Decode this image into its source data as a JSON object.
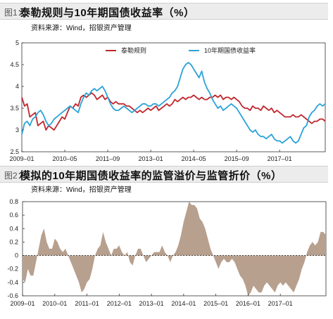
{
  "figure1": {
    "tag": "图1：",
    "title": "泰勒规则与10年期国债收益率（%）",
    "source": "资料来源：Wind，招银资产管理"
  },
  "figure2": {
    "tag": "图2：",
    "title": "模拟的10年期国债收益率的监管溢价与监管折价（%）",
    "source": "资料来源：Wind，招银资产管理"
  },
  "colors": {
    "taylor": "#c0262d",
    "yield10y": "#2aa3d8",
    "premium": "#b8a08e"
  },
  "chart_data": [
    {
      "type": "line",
      "x_start": "2009-01",
      "x_end": "2017-06",
      "frequency": "monthly",
      "ylim": [
        2.5,
        5
      ],
      "yticks": [
        2.5,
        3,
        3.5,
        4,
        4.5,
        5
      ],
      "ytick_labels": [
        "2.5",
        "3",
        "3.5",
        "4",
        "4.5",
        "5"
      ],
      "xtick_labels": [
        "2009–01",
        "2010–05",
        "2011–09",
        "2013–01",
        "2014–05",
        "2015–09",
        "2017–01"
      ],
      "xtick_dates": [
        "2009-01",
        "2010-05",
        "2011-09",
        "2013-01",
        "2014-05",
        "2015-09",
        "2017-01"
      ],
      "grid": false,
      "legend_position": "top",
      "series": [
        {
          "name": "泰勒规则",
          "values": [
            3.75,
            3.55,
            3.6,
            3.3,
            3.35,
            3.4,
            3.1,
            3.15,
            3.2,
            3.0,
            3.1,
            3.05,
            3.0,
            3.1,
            3.2,
            3.3,
            3.25,
            3.4,
            3.55,
            3.5,
            3.6,
            3.55,
            3.75,
            3.8,
            3.75,
            3.8,
            3.85,
            3.8,
            3.7,
            3.75,
            3.8,
            3.7,
            3.75,
            3.65,
            3.6,
            3.65,
            3.6,
            3.6,
            3.6,
            3.55,
            3.55,
            3.5,
            3.45,
            3.4,
            3.45,
            3.4,
            3.45,
            3.5,
            3.45,
            3.5,
            3.55,
            3.45,
            3.5,
            3.55,
            3.6,
            3.55,
            3.6,
            3.7,
            3.65,
            3.7,
            3.75,
            3.7,
            3.75,
            3.75,
            3.8,
            3.75,
            3.7,
            3.75,
            3.7,
            3.7,
            3.75,
            3.75,
            3.8,
            3.75,
            3.8,
            3.7,
            3.75,
            3.75,
            3.7,
            3.75,
            3.7,
            3.65,
            3.55,
            3.5,
            3.5,
            3.45,
            3.55,
            3.5,
            3.5,
            3.45,
            3.55,
            3.5,
            3.45,
            3.5,
            3.4,
            3.45,
            3.4,
            3.35,
            3.3,
            3.3,
            3.3,
            3.35,
            3.3,
            3.3,
            3.35,
            3.3,
            3.25,
            3.2,
            3.15,
            3.2,
            3.2,
            3.25,
            3.25,
            3.2
          ]
        },
        {
          "name": "10年期国债收益率",
          "values": [
            2.9,
            3.15,
            3.2,
            3.1,
            3.25,
            3.3,
            3.4,
            3.45,
            3.35,
            3.2,
            3.1,
            3.15,
            3.25,
            3.3,
            3.35,
            3.4,
            3.45,
            3.5,
            3.55,
            3.5,
            3.45,
            3.4,
            3.6,
            3.75,
            3.85,
            3.8,
            3.9,
            3.95,
            3.9,
            3.95,
            4.0,
            3.9,
            3.75,
            3.6,
            3.5,
            3.45,
            3.45,
            3.5,
            3.55,
            3.5,
            3.45,
            3.4,
            3.45,
            3.5,
            3.55,
            3.6,
            3.6,
            3.55,
            3.55,
            3.6,
            3.6,
            3.55,
            3.6,
            3.65,
            3.7,
            3.75,
            3.85,
            3.9,
            4.0,
            4.2,
            4.4,
            4.5,
            4.55,
            4.5,
            4.4,
            4.3,
            4.2,
            4.35,
            4.1,
            3.95,
            3.85,
            3.7,
            3.6,
            3.5,
            3.55,
            3.45,
            3.5,
            3.55,
            3.6,
            3.55,
            3.5,
            3.4,
            3.3,
            3.2,
            3.1,
            3.0,
            2.95,
            3.0,
            2.9,
            2.85,
            2.85,
            2.8,
            2.85,
            2.9,
            2.8,
            2.75,
            2.75,
            2.7,
            2.75,
            2.8,
            2.85,
            2.75,
            2.7,
            2.75,
            2.9,
            3.05,
            3.1,
            3.3,
            3.4,
            3.45,
            3.55,
            3.6,
            3.55,
            3.6
          ]
        }
      ]
    },
    {
      "type": "area",
      "x_start": "2009-01",
      "x_end": "2017-06",
      "frequency": "monthly",
      "ylim": [
        -0.6,
        0.8
      ],
      "yticks": [
        -0.6,
        -0.4,
        -0.2,
        0,
        0.2,
        0.4,
        0.6,
        0.8
      ],
      "ytick_labels": [
        "-0.6",
        "-0.4",
        "-0.2",
        "0",
        "0.2",
        "0.4",
        "0.6",
        "0.8"
      ],
      "xtick_labels": [
        "2009–01",
        "2010–01",
        "2011–01",
        "2012–01",
        "2013–01",
        "2014–01",
        "2015–01",
        "2016–01",
        "2017–01"
      ],
      "xtick_dates": [
        "2009-01",
        "2010-01",
        "2011-01",
        "2012-01",
        "2013-01",
        "2014-01",
        "2015-01",
        "2016-01",
        "2017-01"
      ],
      "grid": false,
      "series": [
        {
          "name": "",
          "values": [
            -0.35,
            -0.4,
            -0.2,
            -0.3,
            -0.3,
            -0.1,
            0.1,
            0.3,
            0.4,
            0.2,
            0.1,
            0.1,
            0.25,
            0.2,
            0.1,
            0.05,
            0.1,
            0.0,
            -0.1,
            -0.2,
            -0.3,
            -0.4,
            -0.55,
            -0.5,
            -0.4,
            -0.35,
            -0.2,
            0.0,
            0.1,
            0.15,
            0.35,
            0.2,
            0.1,
            0.0,
            0.1,
            0.1,
            0.15,
            0.05,
            0.0,
            0.05,
            -0.1,
            -0.15,
            0.0,
            0.1,
            0.1,
            0.0,
            -0.1,
            -0.05,
            0.0,
            0.05,
            0.05,
            0.05,
            0.15,
            0.05,
            0.0,
            -0.1,
            0.0,
            0.05,
            0.15,
            0.3,
            0.5,
            0.65,
            0.8,
            0.75,
            0.75,
            0.7,
            0.55,
            0.5,
            0.4,
            0.25,
            0.1,
            0.0,
            -0.1,
            -0.2,
            -0.1,
            -0.05,
            -0.1,
            -0.1,
            -0.05,
            -0.1,
            -0.2,
            -0.3,
            -0.35,
            -0.45,
            -0.6,
            -0.55,
            -0.45,
            -0.5,
            -0.55,
            -0.55,
            -0.45,
            -0.4,
            -0.45,
            -0.5,
            -0.55,
            -0.45,
            -0.4,
            -0.45,
            -0.4,
            -0.45,
            -0.5,
            -0.55,
            -0.45,
            -0.35,
            -0.2,
            -0.1,
            0.05,
            0.15,
            0.2,
            0.15,
            0.2,
            0.35,
            0.35,
            0.3
          ]
        }
      ]
    }
  ]
}
